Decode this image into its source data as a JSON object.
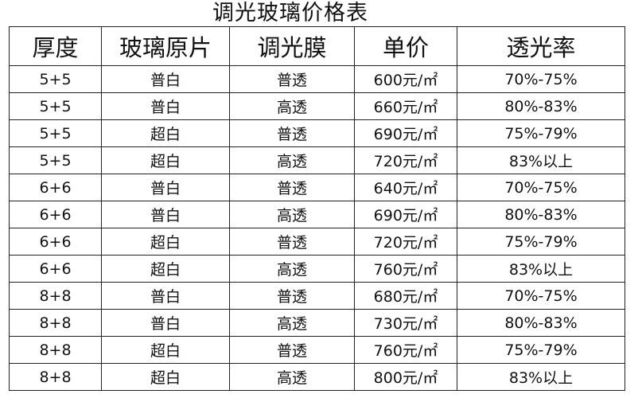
{
  "title": "调光玻璃价格表",
  "headers": [
    "厚度",
    "玻璃原片",
    "调光膜",
    "单价",
    "透光率"
  ],
  "rows": [
    [
      "5+5",
      "普白",
      "普透",
      "600元/㎡",
      "70%-75%"
    ],
    [
      "5+5",
      "普白",
      "高透",
      "660元/㎡",
      "80%-83%"
    ],
    [
      "5+5",
      "超白",
      "普透",
      "690元/㎡",
      "75%-79%"
    ],
    [
      "5+5",
      "超白",
      "高透",
      "720元/㎡",
      "83%以上"
    ],
    [
      "6+6",
      "普白",
      "普透",
      "640元/㎡",
      "70%-75%"
    ],
    [
      "6+6",
      "普白",
      "高透",
      "690元/㎡",
      "80%-83%"
    ],
    [
      "6+6",
      "超白",
      "普透",
      "720元/㎡",
      "75%-79%"
    ],
    [
      "6+6",
      "超白",
      "高透",
      "760元/㎡",
      "83%以上"
    ],
    [
      "8+8",
      "普白",
      "普透",
      "680元/㎡",
      "70%-75%"
    ],
    [
      "8+8",
      "普白",
      "高透",
      "730元/㎡",
      "80%-83%"
    ],
    [
      "8+8",
      "超白",
      "普透",
      "760元/㎡",
      "75%-79%"
    ],
    [
      "8+8",
      "超白",
      "高透",
      "800元/㎡",
      "83%以上"
    ]
  ]
}
